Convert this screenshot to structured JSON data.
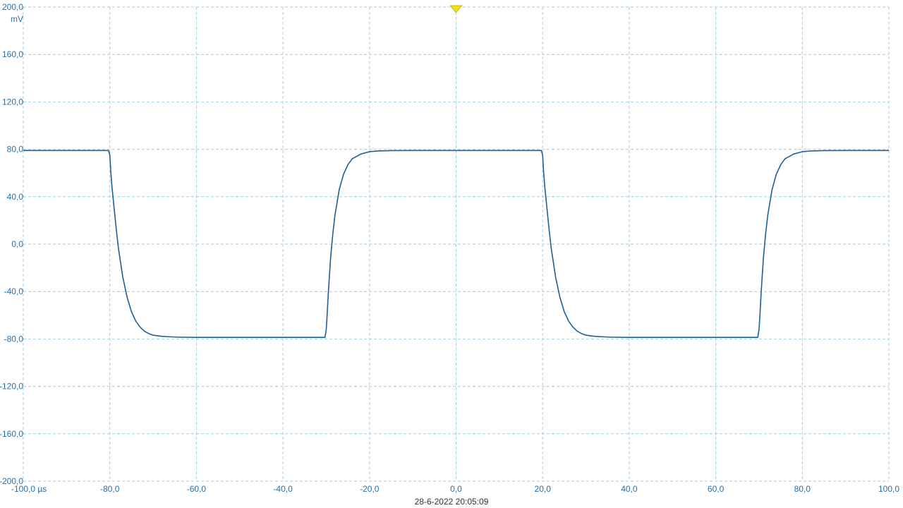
{
  "chart_data": {
    "type": "line",
    "title": "",
    "xlabel": "",
    "ylabel": "",
    "x_unit": "µs",
    "y_unit": "mV",
    "xlim": [
      -100,
      100
    ],
    "ylim": [
      -200,
      200
    ],
    "grid": true,
    "x_ticks": [
      -100,
      -80,
      -60,
      -40,
      -20,
      0,
      20,
      40,
      60,
      80,
      100
    ],
    "x_tick_labels": [
      "-100,0 µs",
      "-80,0",
      "-60,0",
      "-40,0",
      "-20,0",
      "0,0",
      "20,0",
      "40,0",
      "60,0",
      "80,0",
      "100,0"
    ],
    "y_ticks": [
      200,
      160,
      120,
      80,
      40,
      0,
      -40,
      -80,
      -120,
      -160,
      -200
    ],
    "y_tick_labels": [
      "200,0",
      "160,0",
      "120,0",
      "80,0",
      "40,0",
      "0,0",
      "-40,0",
      "-80,0",
      "-120,0",
      "-160,0",
      "-200,0"
    ],
    "trigger_x": 0,
    "series": [
      {
        "color": "#1f5f96",
        "x": [
          -100,
          -80.3,
          -80,
          -79.8,
          -79.5,
          -79,
          -78.5,
          -78,
          -77,
          -76,
          -75,
          -74,
          -73,
          -72,
          -71,
          -70,
          -68,
          -66,
          -64,
          -60,
          -50,
          -40,
          -30.3,
          -30,
          -29.8,
          -29.5,
          -29,
          -28.5,
          -28,
          -27,
          -26,
          -25,
          -24,
          -22,
          -20,
          -18,
          -15,
          -10,
          0,
          10,
          19.7,
          20,
          20.2,
          20.5,
          21,
          21.5,
          22,
          23,
          24,
          25,
          26,
          27,
          28,
          29,
          30,
          32,
          34,
          36,
          40,
          50,
          60,
          69.7,
          70,
          70.2,
          70.5,
          71,
          71.5,
          72,
          73,
          74,
          75,
          76,
          78,
          80,
          82,
          85,
          90,
          100
        ],
        "y": [
          79,
          79,
          75,
          62,
          48,
          30,
          12,
          -4,
          -28,
          -45,
          -57,
          -65,
          -70,
          -73.5,
          -75.5,
          -76.8,
          -77.8,
          -78.2,
          -78.5,
          -78.7,
          -78.7,
          -78.7,
          -78.7,
          -72,
          -60,
          -40,
          -12,
          8,
          24,
          46,
          59,
          67,
          72,
          76,
          78,
          78.6,
          78.9,
          79,
          79,
          79,
          79,
          75,
          62,
          48,
          30,
          12,
          -4,
          -28,
          -45,
          -57,
          -65,
          -70,
          -73.5,
          -75.5,
          -76.8,
          -77.8,
          -78.2,
          -78.5,
          -78.7,
          -78.7,
          -78.7,
          -78.7,
          -72,
          -60,
          -40,
          -12,
          8,
          24,
          46,
          59,
          67,
          72,
          76,
          78,
          78.6,
          78.9,
          79,
          79
        ]
      }
    ]
  },
  "timestamp": "28-6-2022 20:05:09",
  "colors": {
    "trace": "#1f5f96",
    "grid": "#9fd0e2",
    "tick_text": "#2a6fa8",
    "trigger_marker": "#f2e21a"
  }
}
